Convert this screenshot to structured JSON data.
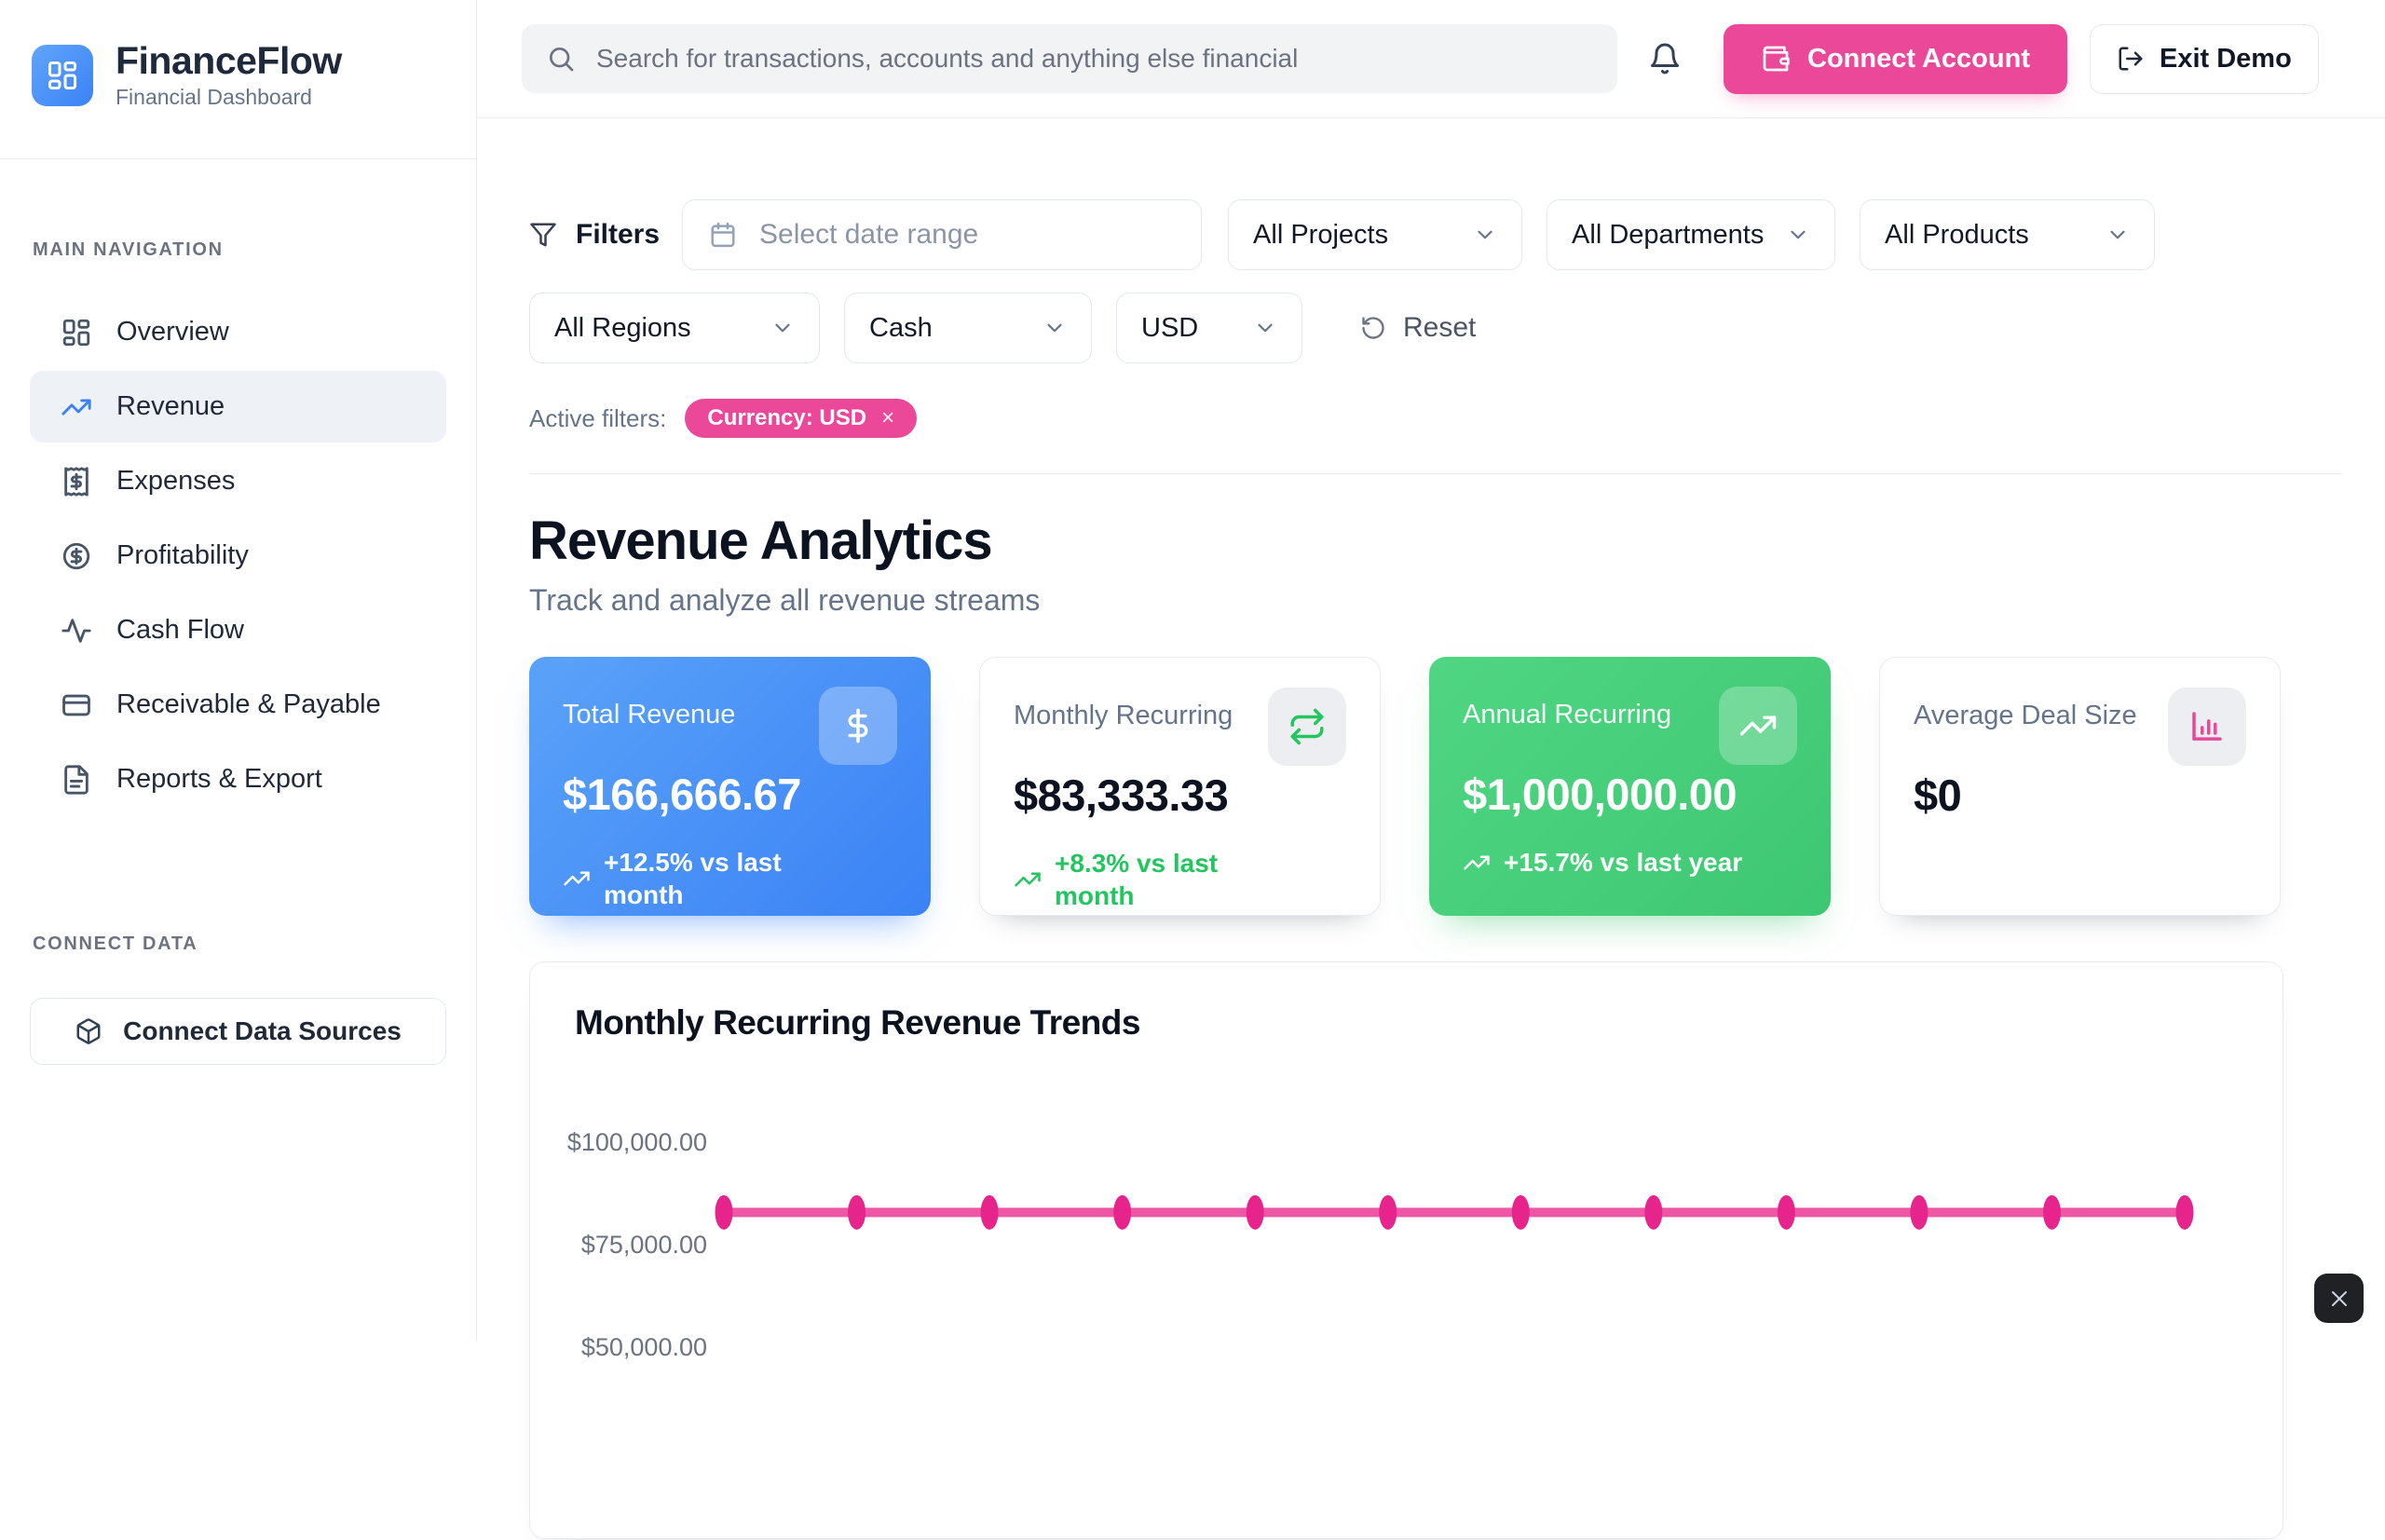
{
  "brand": {
    "name": "FinanceFlow",
    "tagline": "Financial Dashboard",
    "logo_icon": "layout-dashboard"
  },
  "topbar": {
    "search_placeholder": "Search for transactions, accounts and anything else financial",
    "search_icon": "search",
    "bell_icon": "bell",
    "connect_account_label": "Connect Account",
    "connect_account_icon": "wallet",
    "exit_demo_label": "Exit Demo",
    "exit_demo_icon": "log-out"
  },
  "sidebar": {
    "nav_heading": "MAIN NAVIGATION",
    "items": [
      {
        "label": "Overview",
        "icon": "layout-dashboard",
        "active": false
      },
      {
        "label": "Revenue",
        "icon": "trending-up",
        "active": true
      },
      {
        "label": "Expenses",
        "icon": "receipt",
        "active": false
      },
      {
        "label": "Profitability",
        "icon": "circle-dollar",
        "active": false
      },
      {
        "label": "Cash Flow",
        "icon": "activity",
        "active": false
      },
      {
        "label": "Receivable & Payable",
        "icon": "credit-card",
        "active": false
      },
      {
        "label": "Reports & Export",
        "icon": "file-text",
        "active": false
      }
    ],
    "connect_heading": "CONNECT DATA",
    "connect_button_label": "Connect Data Sources",
    "connect_button_icon": "package"
  },
  "filters": {
    "label": "Filters",
    "filter_icon": "funnel",
    "date_placeholder": "Select date range",
    "date_icon": "calendar",
    "selects_row1": [
      "All Projects",
      "All Departments",
      "All Products"
    ],
    "selects_row2": [
      "All Regions",
      "Cash",
      "USD"
    ],
    "reset_label": "Reset",
    "reset_icon": "rotate-ccw",
    "active_filters_label": "Active filters:",
    "chips": [
      "Currency: USD"
    ]
  },
  "page": {
    "title": "Revenue Analytics",
    "subtitle": "Track and analyze all revenue streams"
  },
  "metrics": [
    {
      "title": "Total Revenue",
      "value": "$166,666.67",
      "change": "+12.5% vs last month",
      "variant": "blue",
      "icon": "dollar-sign"
    },
    {
      "title": "Monthly Recurring",
      "value": "$83,333.33",
      "change": "+8.3% vs last month",
      "variant": "light",
      "icon": "repeat"
    },
    {
      "title": "Annual Recurring",
      "value": "$1,000,000.00",
      "change": "+15.7% vs last year",
      "variant": "green",
      "icon": "trending-up"
    },
    {
      "title": "Average Deal Size",
      "value": "$0",
      "change": "",
      "variant": "light",
      "icon": "bar-chart"
    }
  ],
  "chart_data": {
    "type": "line",
    "title": "Monthly Recurring Revenue Trends",
    "x": [
      1,
      2,
      3,
      4,
      5,
      6,
      7,
      8,
      9,
      10,
      11,
      12
    ],
    "x_axis_labels_visible": false,
    "series": [
      {
        "name": "Monthly Recurring Revenue",
        "values": [
          83333.33,
          83333.33,
          83333.33,
          83333.33,
          83333.33,
          83333.33,
          83333.33,
          83333.33,
          83333.33,
          83333.33,
          83333.33,
          83333.33
        ]
      }
    ],
    "y_ticks": [
      {
        "label": "$100,000.00",
        "value": 100000
      },
      {
        "label": "$75,000.00",
        "value": 75000
      },
      {
        "label": "$50,000.00",
        "value": 50000
      }
    ],
    "grid": false,
    "legend": false,
    "line_color": "#ee57a6",
    "point_color": "#e7248c"
  },
  "close_button": {
    "icon": "x",
    "glyph": "×"
  },
  "colors": {
    "accent_pink": "#ec4899",
    "accent_blue": "#3b82f6",
    "accent_green": "#22c55e",
    "card_blue_gradient": [
      "#5aa2f8",
      "#3b82f6"
    ],
    "card_green_gradient": [
      "#50d683",
      "#3ec772"
    ],
    "text_dark": "#0b1220",
    "text_gray": "#64748b",
    "border": "#e8eaee"
  }
}
